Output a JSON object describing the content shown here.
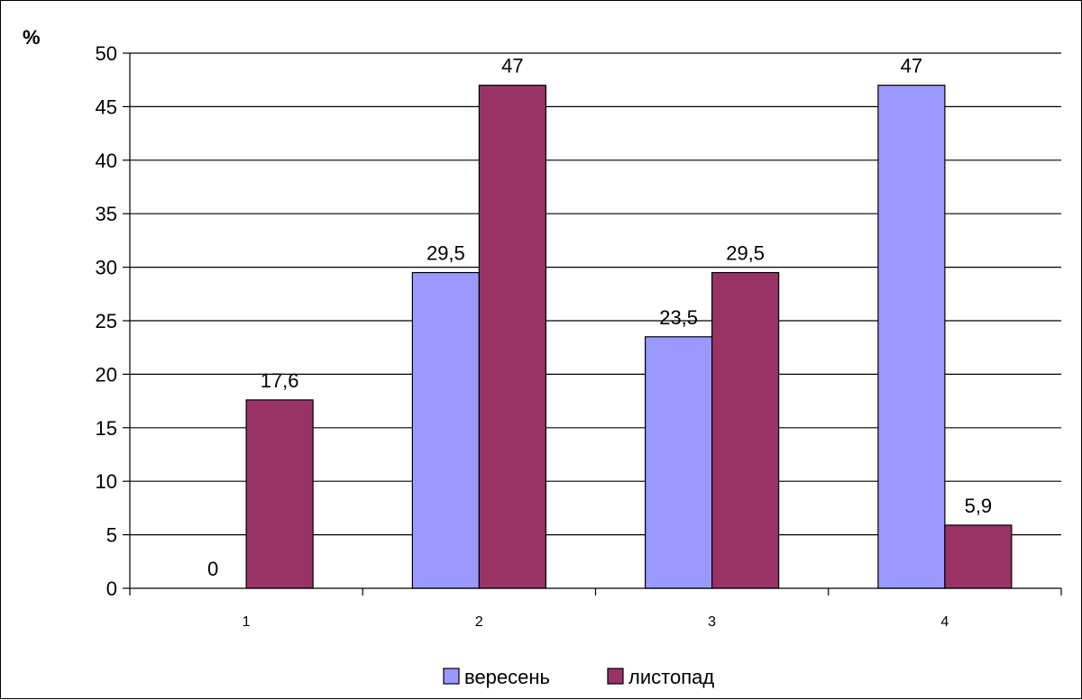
{
  "chart_data": {
    "type": "bar",
    "categories": [
      "1",
      "2",
      "3",
      "4"
    ],
    "series": [
      {
        "name": "вересень",
        "values": [
          0,
          29.5,
          23.5,
          47
        ],
        "labels": [
          "0",
          "29,5",
          "23,5",
          "47"
        ],
        "color": "#9999ff"
      },
      {
        "name": "листопад",
        "values": [
          17.6,
          47,
          29.5,
          5.9
        ],
        "labels": [
          "17,6",
          "47",
          "29,5",
          "5,9"
        ],
        "color": "#993366"
      }
    ],
    "ylabel": "%",
    "ylim": [
      0,
      50
    ],
    "yticks": [
      0,
      5,
      10,
      15,
      20,
      25,
      30,
      35,
      40,
      45,
      50
    ],
    "grid": true,
    "legend_position": "bottom"
  }
}
